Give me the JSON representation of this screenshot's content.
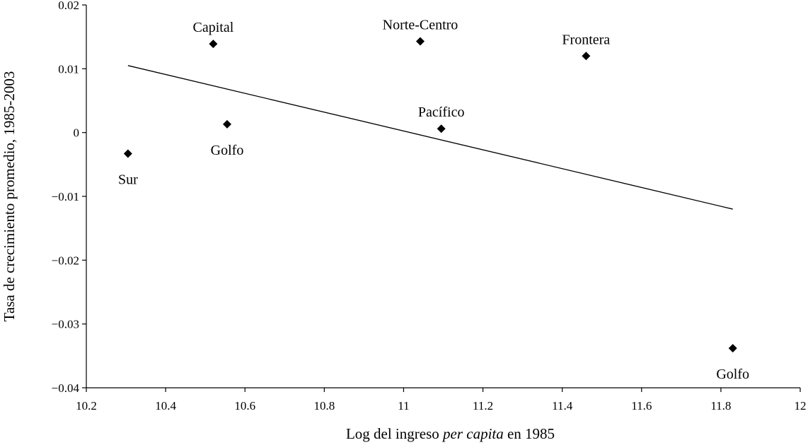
{
  "chart_data": {
    "type": "scatter",
    "title": "",
    "xlabel_parts": [
      {
        "text": "Log del ingreso ",
        "italic": false
      },
      {
        "text": "per capita",
        "italic": true
      },
      {
        "text": " en 1985",
        "italic": false
      }
    ],
    "ylabel": "Tasa de crecimiento promedio, 1985-2003",
    "xlim": [
      10.2,
      12.0
    ],
    "ylim": [
      -0.04,
      0.02
    ],
    "xticks": [
      10.2,
      10.4,
      10.6,
      10.8,
      11.0,
      11.2,
      11.4,
      11.6,
      11.8,
      12.0
    ],
    "xtick_labels": [
      "10.2",
      "10.4",
      "10.6",
      "10.8",
      "11",
      "11.2",
      "11.4",
      "11.6",
      "11.8",
      "12"
    ],
    "yticks": [
      0.02,
      0.01,
      0.0,
      -0.01,
      -0.02,
      -0.03,
      -0.04
    ],
    "ytick_labels": [
      "0.02",
      "0.01",
      "0",
      "−0.01",
      "−0.02",
      "−0.03",
      "−0.04"
    ],
    "grid": false,
    "points": [
      {
        "label": "Sur",
        "x": 10.305,
        "y": -0.0033,
        "label_pos": "below"
      },
      {
        "label": "Capital",
        "x": 10.52,
        "y": 0.0139,
        "label_pos": "above"
      },
      {
        "label": "Golfo",
        "x": 10.555,
        "y": 0.0013,
        "label_pos": "below"
      },
      {
        "label": "Norte-Centro",
        "x": 11.042,
        "y": 0.0143,
        "label_pos": "above"
      },
      {
        "label": "Pacífico",
        "x": 11.095,
        "y": 0.0006,
        "label_pos": "above"
      },
      {
        "label": "Frontera",
        "x": 11.46,
        "y": 0.012,
        "label_pos": "above"
      },
      {
        "label": "Golfo",
        "x": 11.83,
        "y": -0.0338,
        "label_pos": "below"
      }
    ],
    "trendline": {
      "x": [
        10.305,
        11.83
      ],
      "y": [
        0.0105,
        -0.012
      ]
    },
    "marker": "diamond",
    "color": "#000000"
  }
}
